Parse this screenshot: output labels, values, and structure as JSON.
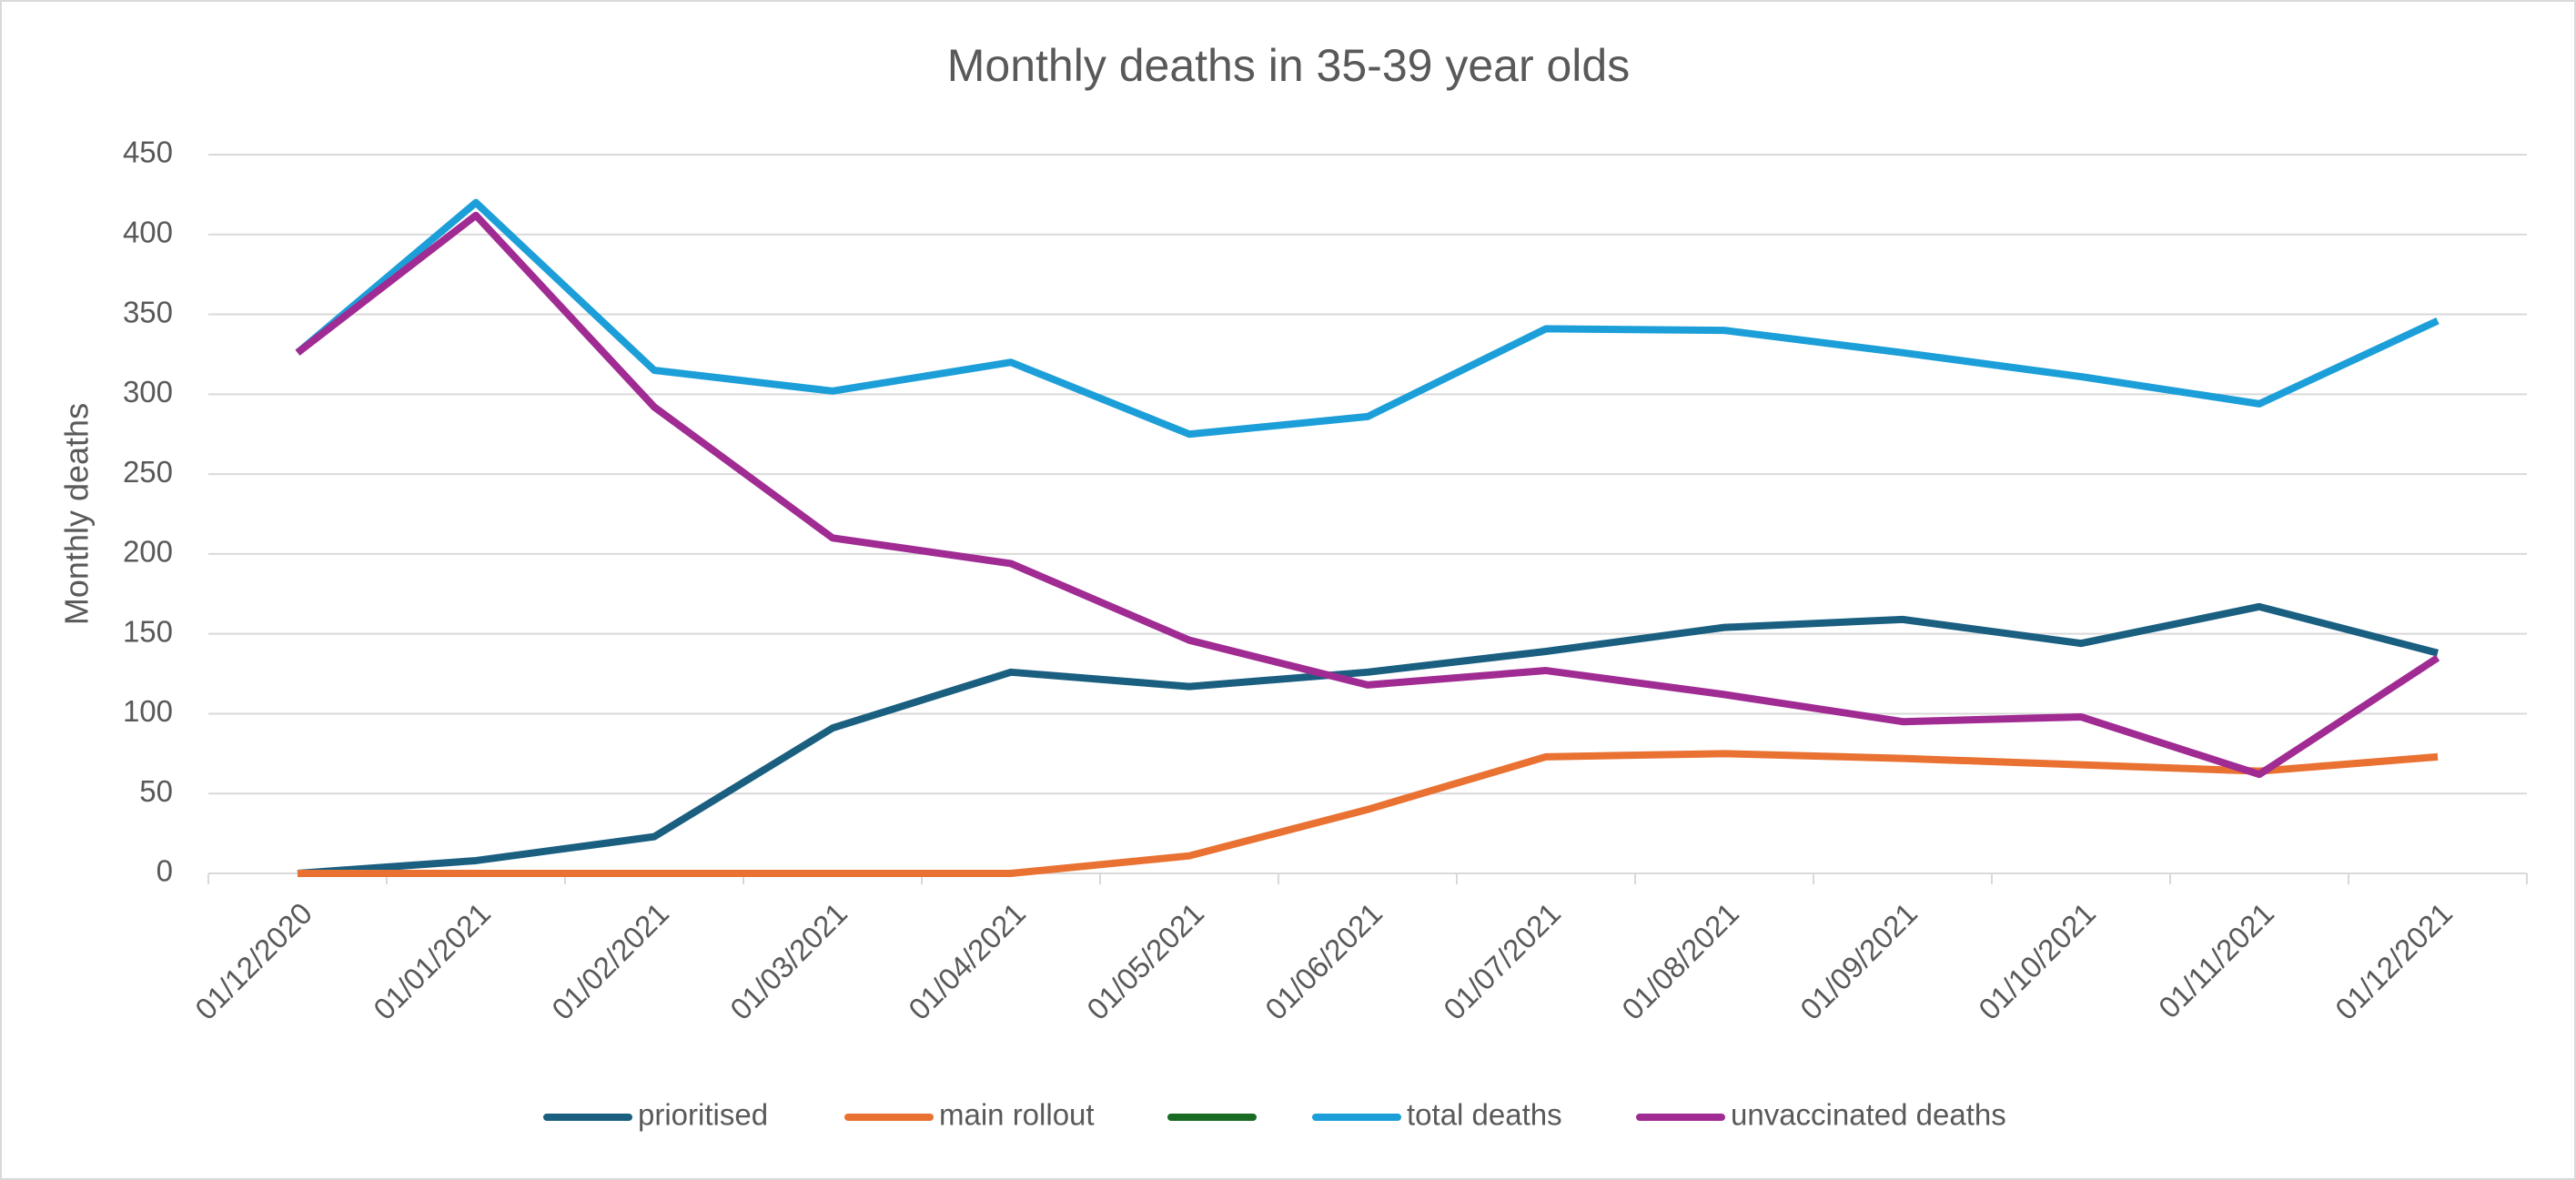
{
  "chart_data": {
    "type": "line",
    "title": "Monthly deaths in 35-39 year olds",
    "y_label": "Monthly deaths",
    "categories": [
      "01/12/2020",
      "01/01/2021",
      "01/02/2021",
      "01/03/2021",
      "01/04/2021",
      "01/05/2021",
      "01/06/2021",
      "01/07/2021",
      "01/08/2021",
      "01/09/2021",
      "01/10/2021",
      "01/11/2021",
      "01/12/2021"
    ],
    "series": [
      {
        "name": "prioritised",
        "color": "#1a5f80",
        "values": [
          0,
          8,
          23,
          91,
          126,
          117,
          126,
          139,
          154,
          159,
          144,
          167,
          138
        ]
      },
      {
        "name": "main rollout",
        "color": "#e97132",
        "values": [
          0,
          0,
          0,
          0,
          0,
          11,
          40,
          73,
          75,
          72,
          68,
          64,
          73
        ]
      },
      {
        "name": null,
        "color": "#196b24",
        "values": [
          null,
          null,
          null,
          null,
          null,
          null,
          null,
          null,
          null,
          null,
          null,
          null,
          null
        ]
      },
      {
        "name": "total deaths",
        "color": "#1c9fd8",
        "values": [
          326,
          420,
          315,
          302,
          320,
          275,
          286,
          341,
          340,
          326,
          311,
          294,
          346
        ]
      },
      {
        "name": "unvaccinated deaths",
        "color": "#a02b93",
        "values": [
          326,
          412,
          292,
          210,
          194,
          146,
          118,
          127,
          112,
          95,
          98,
          62,
          135
        ]
      }
    ],
    "ylim": [
      0,
      450
    ],
    "yticks": [
      0,
      50,
      100,
      150,
      200,
      250,
      300,
      350,
      400,
      450
    ],
    "grid": true,
    "legend": "bottom"
  }
}
